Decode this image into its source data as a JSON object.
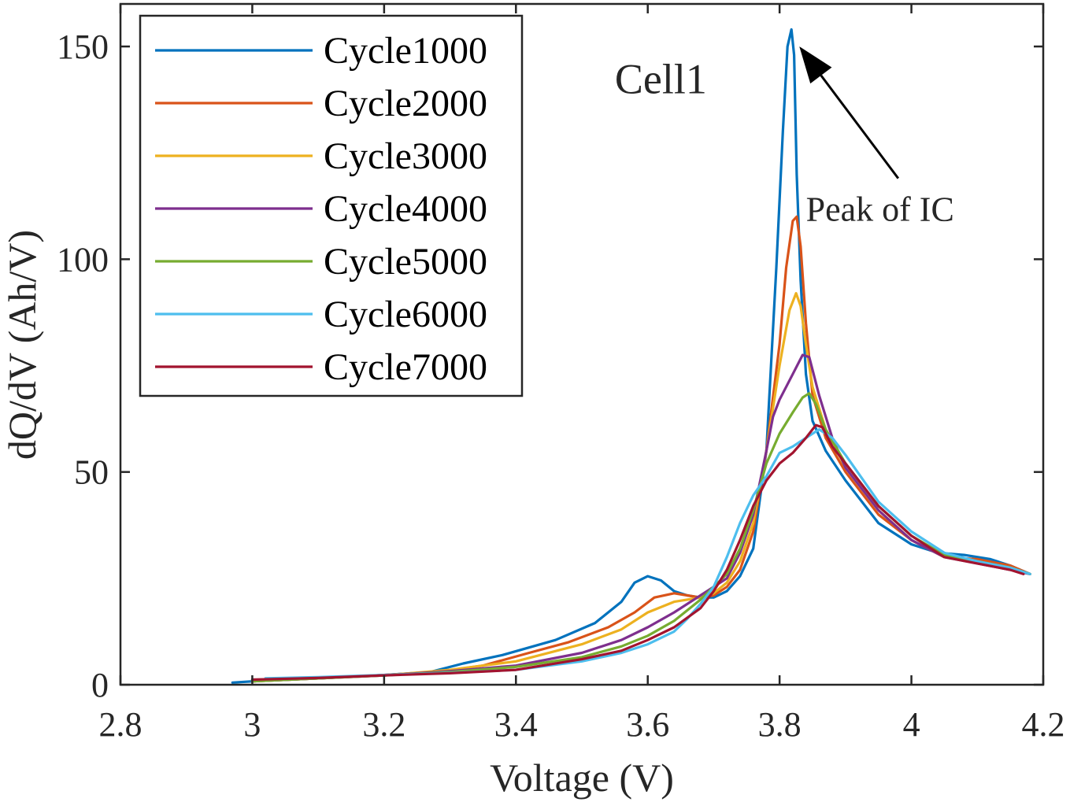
{
  "chart_data": {
    "type": "line",
    "title": "",
    "xlabel": "Voltage (V)",
    "ylabel": "dQ/dV (Ah/V)",
    "xlim": [
      2.8,
      4.2
    ],
    "ylim": [
      0,
      160
    ],
    "x_ticks": [
      2.8,
      3,
      3.2,
      3.4,
      3.6,
      3.8,
      4,
      4.2
    ],
    "x_tick_labels": [
      "2.8",
      "3",
      "3.2",
      "3.4",
      "3.6",
      "3.8",
      "4",
      "4.2"
    ],
    "y_ticks": [
      0,
      50,
      100,
      150
    ],
    "y_tick_labels": [
      "0",
      "50",
      "100",
      "150"
    ],
    "legend_position": "top-left",
    "annotations": [
      {
        "text": "Cell1",
        "x": 3.55,
        "y": 139
      },
      {
        "text": "Peak of IC",
        "x": 3.84,
        "y": 109,
        "arrow_from": [
          3.98,
          119
        ],
        "arrow_to": [
          3.83,
          150
        ]
      }
    ],
    "series": [
      {
        "name": "Cycle1000",
        "color": "#0072BD",
        "x": [
          2.97,
          3.02,
          3.1,
          3.2,
          3.27,
          3.32,
          3.38,
          3.46,
          3.52,
          3.56,
          3.58,
          3.6,
          3.62,
          3.64,
          3.66,
          3.68,
          3.7,
          3.72,
          3.74,
          3.76,
          3.78,
          3.795,
          3.805,
          3.812,
          3.818,
          3.822,
          3.826,
          3.832,
          3.84,
          3.85,
          3.87,
          3.9,
          3.95,
          4.0,
          4.04,
          4.08,
          4.12,
          4.15,
          4.18
        ],
        "y": [
          0.5,
          1,
          1.5,
          2.3,
          3,
          5,
          7,
          10.5,
          14.5,
          19.5,
          24,
          25.5,
          24.5,
          22,
          21,
          20.5,
          20.5,
          22,
          25.5,
          32,
          55,
          98,
          130,
          150,
          154,
          148,
          120,
          95,
          73,
          62,
          55,
          48,
          38,
          33,
          31,
          30.5,
          29.5,
          28,
          26
        ]
      },
      {
        "name": "Cycle2000",
        "color": "#D95319",
        "x": [
          3.0,
          3.1,
          3.2,
          3.28,
          3.35,
          3.42,
          3.48,
          3.54,
          3.58,
          3.61,
          3.64,
          3.66,
          3.68,
          3.7,
          3.72,
          3.74,
          3.76,
          3.78,
          3.8,
          3.81,
          3.82,
          3.826,
          3.832,
          3.84,
          3.85,
          3.87,
          3.9,
          3.95,
          4.0,
          4.05,
          4.1,
          4.15,
          4.18
        ],
        "y": [
          0.8,
          1.5,
          2.3,
          3,
          4.5,
          7.5,
          10,
          13.5,
          17,
          20.5,
          21.5,
          21,
          20.5,
          21,
          23,
          27,
          36,
          55,
          80,
          98,
          109,
          110,
          103,
          85,
          68,
          58,
          50,
          40,
          34,
          30,
          29.5,
          28,
          26
        ]
      },
      {
        "name": "Cycle3000",
        "color": "#EDB120",
        "x": [
          3.0,
          3.1,
          3.2,
          3.3,
          3.4,
          3.5,
          3.56,
          3.6,
          3.64,
          3.68,
          3.7,
          3.72,
          3.74,
          3.76,
          3.78,
          3.8,
          3.815,
          3.825,
          3.832,
          3.84,
          3.85,
          3.87,
          3.9,
          3.95,
          4.0,
          4.05,
          4.1,
          4.15,
          4.18
        ],
        "y": [
          0.8,
          1.5,
          2.2,
          3.5,
          5.5,
          9.5,
          13,
          17,
          19.5,
          20.5,
          21.5,
          24,
          29,
          38,
          55,
          75,
          88,
          92,
          89,
          80,
          70,
          60,
          51,
          41,
          34,
          30,
          29,
          27.5,
          26
        ]
      },
      {
        "name": "Cycle4000",
        "color": "#7E2F8E",
        "x": [
          3.0,
          3.1,
          3.2,
          3.3,
          3.4,
          3.5,
          3.56,
          3.6,
          3.64,
          3.68,
          3.72,
          3.74,
          3.76,
          3.78,
          3.79,
          3.8,
          3.82,
          3.835,
          3.845,
          3.86,
          3.88,
          3.9,
          3.95,
          4.0,
          4.05,
          4.1,
          4.15,
          4.18
        ],
        "y": [
          0.8,
          1.5,
          2.2,
          3.2,
          4.5,
          7.5,
          10.5,
          13.5,
          17,
          21,
          25,
          31,
          40,
          55,
          63,
          67,
          73,
          77.5,
          77,
          68,
          58,
          51,
          41,
          34,
          30,
          28.5,
          27,
          26
        ]
      },
      {
        "name": "Cycle5000",
        "color": "#77AC30",
        "x": [
          3.0,
          3.1,
          3.2,
          3.3,
          3.4,
          3.5,
          3.56,
          3.6,
          3.64,
          3.68,
          3.72,
          3.74,
          3.76,
          3.78,
          3.8,
          3.82,
          3.835,
          3.845,
          3.855,
          3.87,
          3.9,
          3.95,
          4.0,
          4.05,
          4.1,
          4.15,
          4.18
        ],
        "y": [
          0.8,
          1.5,
          2.2,
          3,
          4.2,
          6.5,
          9,
          11.5,
          15,
          20,
          26,
          32,
          41,
          52,
          59,
          64,
          67.5,
          68.5,
          66,
          60,
          52,
          42,
          35,
          30.5,
          29,
          27.5,
          26
        ]
      },
      {
        "name": "Cycle6000",
        "color": "#4DBEEE",
        "x": [
          3.02,
          3.1,
          3.2,
          3.3,
          3.4,
          3.5,
          3.56,
          3.6,
          3.64,
          3.66,
          3.68,
          3.7,
          3.72,
          3.74,
          3.76,
          3.78,
          3.8,
          3.82,
          3.84,
          3.86,
          3.88,
          3.9,
          3.95,
          4.0,
          4.05,
          4.1,
          4.15,
          4.18
        ],
        "y": [
          1.5,
          1.8,
          2.3,
          2.8,
          3.5,
          5.5,
          7.5,
          9.5,
          12.5,
          15.5,
          19,
          23,
          30,
          38,
          44.5,
          49,
          54.5,
          56,
          58,
          60,
          58,
          54,
          43,
          36,
          31,
          29,
          27.5,
          26
        ]
      },
      {
        "name": "Cycle7000",
        "color": "#A2142F",
        "x": [
          3.0,
          3.1,
          3.2,
          3.3,
          3.4,
          3.5,
          3.56,
          3.6,
          3.64,
          3.68,
          3.7,
          3.72,
          3.74,
          3.76,
          3.78,
          3.8,
          3.82,
          3.84,
          3.855,
          3.865,
          3.88,
          3.9,
          3.95,
          4.0,
          4.05,
          4.1,
          4.15,
          4.17
        ],
        "y": [
          1.2,
          1.6,
          2.2,
          2.7,
          3.5,
          6,
          8,
          10.5,
          13.5,
          18,
          22,
          27,
          34,
          42,
          48,
          52,
          54.5,
          58,
          61,
          60.5,
          56,
          52,
          42,
          35,
          30,
          28.5,
          27,
          26
        ]
      }
    ]
  }
}
